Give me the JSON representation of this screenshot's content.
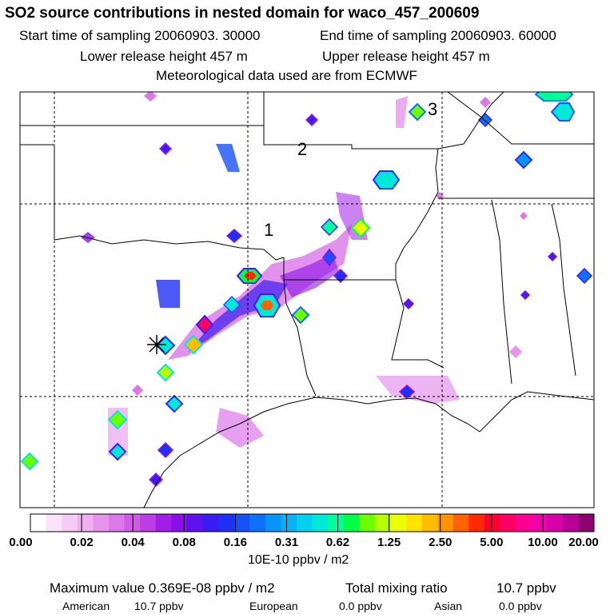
{
  "header": {
    "title": "SO2 source contributions in nested domain for waco_457_200609",
    "start_time": "Start time of sampling 20060903. 30000",
    "end_time": "End time of sampling 20060903. 60000",
    "lower_height": "Lower release height  457 m",
    "upper_height": "Upper release height  457 m",
    "meteo": "Meteorological data used are from ECMWF"
  },
  "map": {
    "region_labels": [
      "1",
      "2",
      "3"
    ],
    "release_marker": "release-site-star"
  },
  "colorbar": {
    "tick_labels": [
      "0.00",
      "0.02",
      "0.04",
      "0.08",
      "0.16",
      "0.31",
      "0.62",
      "1.25",
      "2.50",
      "5.00",
      "10.00",
      "20.00"
    ],
    "colors": [
      "#ffffff",
      "#fbe3fb",
      "#f6ccf6",
      "#f0b0f0",
      "#e795ec",
      "#dc78e8",
      "#cf5be6",
      "#bd3ee6",
      "#a21ee8",
      "#8a10ea",
      "#5f12ee",
      "#3a1cf2",
      "#1f30f6",
      "#1750f8",
      "#0f70fa",
      "#0994fb",
      "#05b4f8",
      "#02d0ee",
      "#00e8d8",
      "#00ff9c",
      "#00ff46",
      "#6cff00",
      "#b6ff00",
      "#eaff00",
      "#ffe400",
      "#ffbc00",
      "#ff9400",
      "#ff6200",
      "#ff2a00",
      "#ff0030",
      "#ff0064",
      "#ff0094",
      "#f000aa",
      "#d800a8",
      "#b80098",
      "#8c0070"
    ],
    "units": "10E-10 ppbv / m2"
  },
  "summary": {
    "max_value": "Maximum value  0.369E-08 ppbv / m2",
    "total_label": "Total mixing ratio",
    "total_value": "10.7 ppbv",
    "sources": [
      {
        "name": "American",
        "value": "10.7 ppbv"
      },
      {
        "name": "European",
        "value": "0.0 ppbv"
      },
      {
        "name": "Asian",
        "value": "0.0 ppbv"
      }
    ]
  }
}
